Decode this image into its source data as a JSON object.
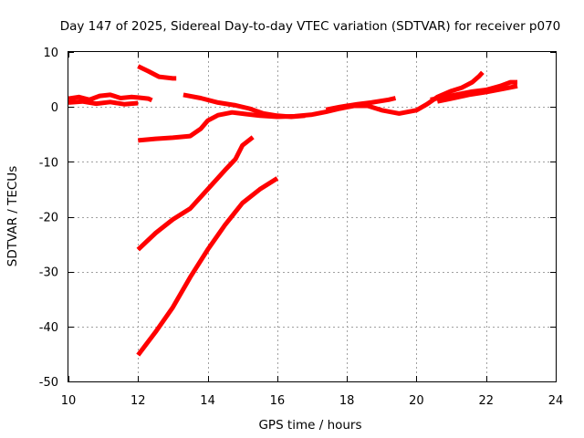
{
  "chart_data": {
    "type": "scatter",
    "title": "Day 147 of 2025, Sidereal Day-to-day VTEC variation (SDTVAR) for receiver p070",
    "xlabel": "GPS time / hours",
    "ylabel": "SDTVAR / TECUs",
    "xlim": [
      10,
      24
    ],
    "ylim": [
      -50,
      10
    ],
    "xticks": [
      "10",
      "12",
      "14",
      "16",
      "18",
      "20",
      "22",
      "24"
    ],
    "yticks": [
      "10",
      "0",
      "-10",
      "-20",
      "-30",
      "-40",
      "-50"
    ],
    "grid": true,
    "color": "#ff0000",
    "series": [
      {
        "points": [
          [
            10.0,
            1.5
          ],
          [
            10.3,
            1.8
          ],
          [
            10.6,
            1.3
          ],
          [
            10.9,
            2.0
          ],
          [
            11.2,
            2.2
          ],
          [
            11.5,
            1.6
          ],
          [
            11.8,
            1.8
          ],
          [
            12.0,
            1.7
          ],
          [
            12.3,
            1.5
          ],
          [
            12.4,
            1.2
          ]
        ]
      },
      {
        "points": [
          [
            10.0,
            0.8
          ],
          [
            10.4,
            1.0
          ],
          [
            10.8,
            0.6
          ],
          [
            11.2,
            0.9
          ],
          [
            11.6,
            0.5
          ],
          [
            12.0,
            0.7
          ]
        ]
      },
      {
        "points": [
          [
            12.0,
            7.4
          ],
          [
            12.3,
            6.5
          ],
          [
            12.6,
            5.5
          ],
          [
            13.0,
            5.2
          ],
          [
            13.1,
            5.2
          ]
        ]
      },
      {
        "points": [
          [
            13.3,
            2.2
          ],
          [
            13.8,
            1.6
          ],
          [
            14.3,
            0.8
          ],
          [
            14.8,
            0.3
          ],
          [
            15.2,
            -0.3
          ],
          [
            15.6,
            -1.2
          ],
          [
            16.0,
            -1.6
          ],
          [
            16.4,
            -1.8
          ],
          [
            16.8,
            -1.6
          ]
        ]
      },
      {
        "points": [
          [
            12.0,
            -6.1
          ],
          [
            12.5,
            -5.8
          ],
          [
            13.0,
            -5.6
          ],
          [
            13.5,
            -5.3
          ],
          [
            13.8,
            -4.0
          ],
          [
            14.0,
            -2.5
          ],
          [
            14.3,
            -1.5
          ],
          [
            14.7,
            -1.0
          ],
          [
            15.1,
            -1.3
          ],
          [
            15.5,
            -1.6
          ],
          [
            16.0,
            -1.8
          ],
          [
            16.5,
            -1.7
          ],
          [
            17.0,
            -1.4
          ],
          [
            17.4,
            -0.9
          ],
          [
            17.8,
            -0.3
          ],
          [
            18.2,
            0.2
          ],
          [
            18.6,
            0.2
          ],
          [
            19.0,
            -0.6
          ],
          [
            19.5,
            -1.2
          ],
          [
            20.0,
            -0.6
          ],
          [
            20.3,
            0.5
          ],
          [
            20.6,
            1.8
          ],
          [
            21.0,
            2.9
          ],
          [
            21.3,
            3.5
          ],
          [
            21.6,
            4.5
          ],
          [
            21.8,
            5.6
          ],
          [
            21.9,
            6.3
          ]
        ]
      },
      {
        "points": [
          [
            17.4,
            -0.5
          ],
          [
            17.8,
            0.0
          ],
          [
            18.3,
            0.5
          ],
          [
            18.7,
            0.8
          ],
          [
            19.2,
            1.3
          ],
          [
            19.4,
            1.6
          ]
        ]
      },
      {
        "points": [
          [
            20.4,
            1.3
          ],
          [
            20.8,
            1.8
          ],
          [
            21.2,
            2.3
          ],
          [
            21.6,
            2.8
          ],
          [
            22.0,
            3.1
          ],
          [
            22.4,
            3.8
          ],
          [
            22.7,
            4.5
          ],
          [
            22.9,
            4.5
          ]
        ]
      },
      {
        "points": [
          [
            20.6,
            1.0
          ],
          [
            21.0,
            1.5
          ],
          [
            21.5,
            2.2
          ],
          [
            22.0,
            2.7
          ],
          [
            22.5,
            3.3
          ],
          [
            22.9,
            3.8
          ]
        ]
      },
      {
        "points": [
          [
            12.0,
            -26.0
          ],
          [
            12.5,
            -23.0
          ],
          [
            13.0,
            -20.5
          ],
          [
            13.5,
            -18.5
          ],
          [
            14.0,
            -15.0
          ],
          [
            14.5,
            -11.5
          ],
          [
            14.8,
            -9.5
          ],
          [
            15.0,
            -7.0
          ],
          [
            15.3,
            -5.5
          ]
        ]
      },
      {
        "points": [
          [
            12.0,
            -45.2
          ],
          [
            12.5,
            -41.0
          ],
          [
            13.0,
            -36.5
          ],
          [
            13.5,
            -31.0
          ],
          [
            14.0,
            -26.0
          ],
          [
            14.5,
            -21.5
          ],
          [
            15.0,
            -17.5
          ],
          [
            15.5,
            -15.0
          ],
          [
            16.0,
            -13.0
          ]
        ]
      }
    ]
  }
}
